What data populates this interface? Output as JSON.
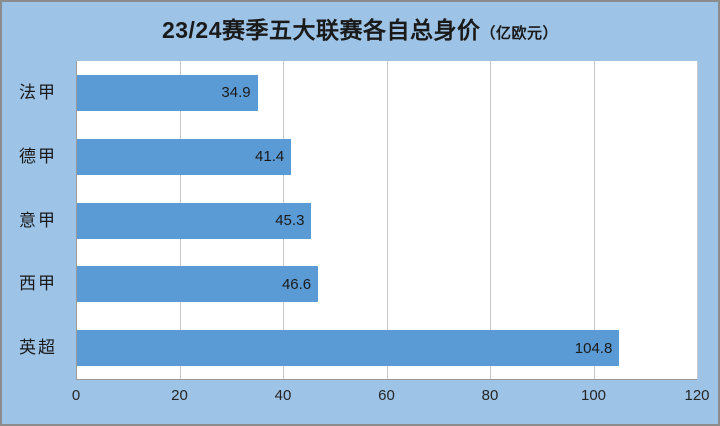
{
  "chart_data": {
    "type": "bar",
    "orientation": "horizontal",
    "title": "23/24赛季五大联赛各自总身价",
    "title_suffix": "（亿欧元）",
    "categories": [
      "法甲",
      "德甲",
      "意甲",
      "西甲",
      "英超"
    ],
    "values": [
      34.9,
      41.4,
      45.3,
      46.6,
      104.8
    ],
    "value_labels": [
      "34.9",
      "41.4",
      "45.3",
      "46.6",
      "104.8"
    ],
    "xlabel": "",
    "ylabel": "",
    "xlim": [
      0,
      120
    ],
    "xticks": [
      0,
      20,
      40,
      60,
      80,
      100,
      120
    ],
    "grid": true,
    "legend_position": "none",
    "colors": {
      "background": "#9DC3E6",
      "plot_background": "#FFFFFF",
      "bar": "#5B9BD5",
      "gridline": "#C9C9C9",
      "axis_line": "#9A9A9A",
      "text": "#1A1A1A",
      "frame_border": "#8C8C8C"
    }
  }
}
